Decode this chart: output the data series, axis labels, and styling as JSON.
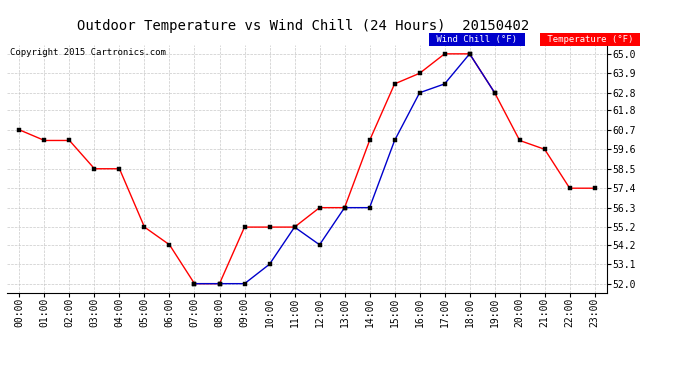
{
  "title": "Outdoor Temperature vs Wind Chill (24 Hours)  20150402",
  "copyright": "Copyright 2015 Cartronics.com",
  "background_color": "#ffffff",
  "plot_bg_color": "#ffffff",
  "grid_color": "#bbbbbb",
  "x_labels": [
    "00:00",
    "01:00",
    "02:00",
    "03:00",
    "04:00",
    "05:00",
    "06:00",
    "07:00",
    "08:00",
    "09:00",
    "10:00",
    "11:00",
    "12:00",
    "13:00",
    "14:00",
    "15:00",
    "16:00",
    "17:00",
    "18:00",
    "19:00",
    "20:00",
    "21:00",
    "22:00",
    "23:00"
  ],
  "y_ticks": [
    52.0,
    53.1,
    54.2,
    55.2,
    56.3,
    57.4,
    58.5,
    59.6,
    60.7,
    61.8,
    62.8,
    63.9,
    65.0
  ],
  "ylim": [
    51.5,
    65.5
  ],
  "temperature": [
    60.7,
    60.1,
    60.1,
    58.5,
    58.5,
    55.2,
    54.2,
    52.0,
    52.0,
    55.2,
    55.2,
    55.2,
    56.3,
    56.3,
    60.1,
    63.3,
    63.9,
    65.0,
    65.0,
    62.8,
    60.1,
    59.6,
    57.4,
    57.4
  ],
  "wind_chill": [
    null,
    null,
    null,
    null,
    null,
    null,
    null,
    52.0,
    52.0,
    52.0,
    53.1,
    55.2,
    54.2,
    56.3,
    56.3,
    60.1,
    62.8,
    63.3,
    65.0,
    62.8,
    null,
    null,
    null,
    null
  ],
  "temp_color": "#ff0000",
  "wind_color": "#0000cc",
  "legend_wind_bg": "#0000cc",
  "legend_temp_bg": "#ff0000",
  "title_fontsize": 10,
  "tick_fontsize": 7,
  "marker_size": 2.5
}
